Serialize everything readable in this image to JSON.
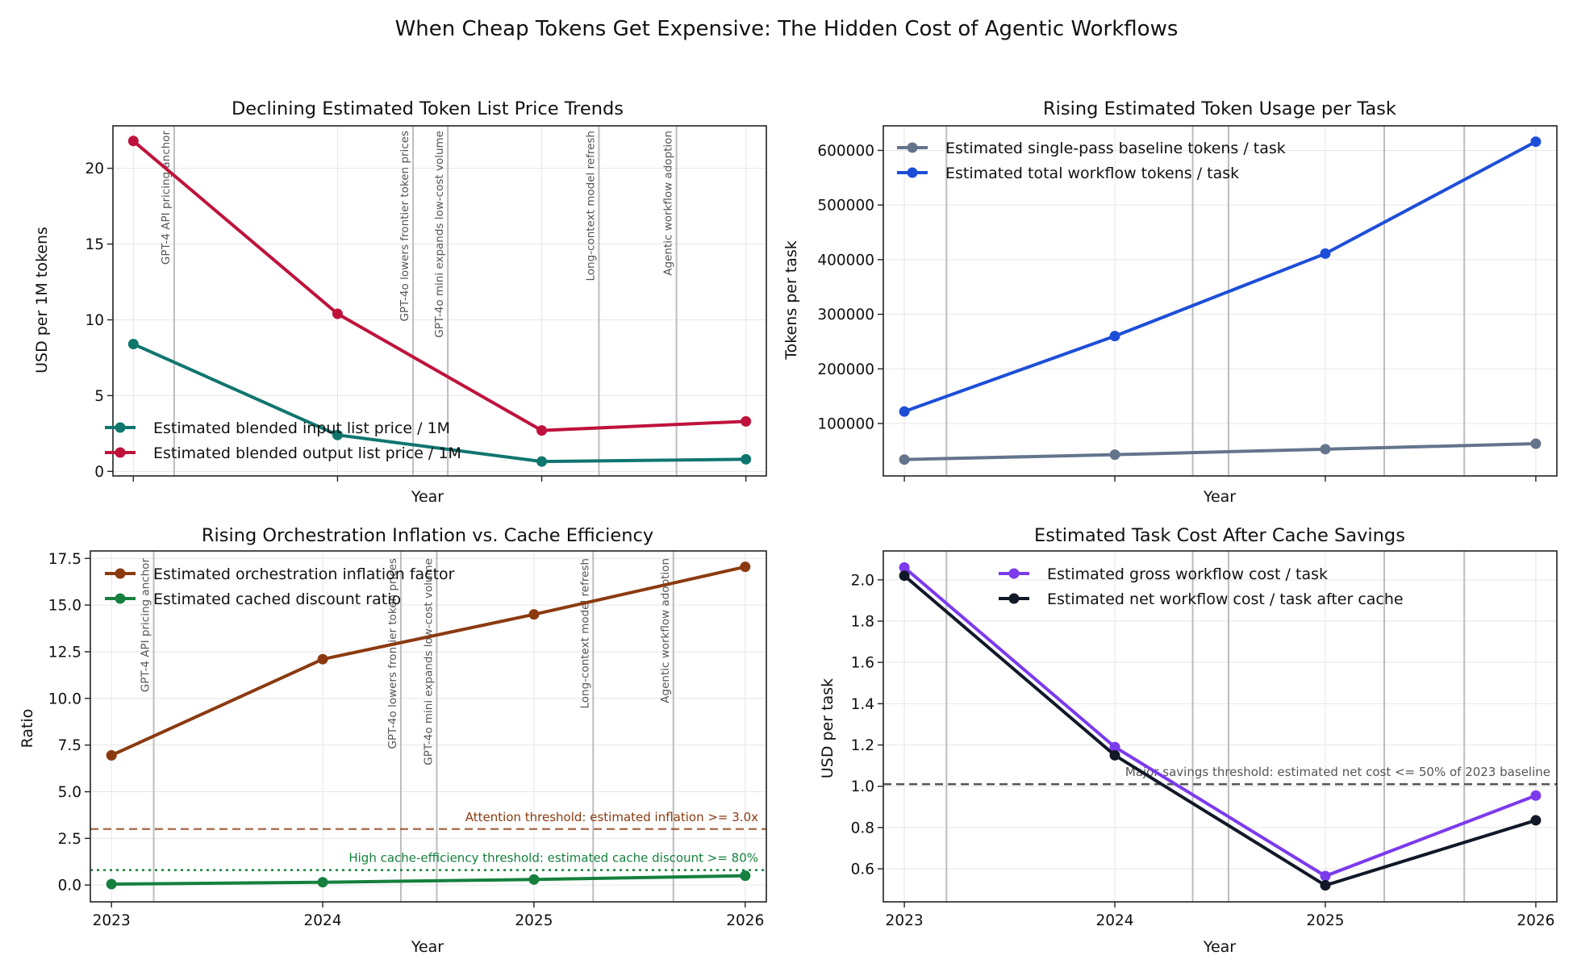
{
  "figure_title": "When Cheap Tokens Get Expensive: The Hidden Cost of Agentic Workflows",
  "colors": {
    "input_price": "#0f766e",
    "output_price": "#be123c",
    "baseline_tokens": "#64748b",
    "workflow_tokens": "#1d4ed8",
    "inflation": "#8b3a0f",
    "cache_discount": "#15803d",
    "gross_cost": "#7c3aed",
    "net_cost": "#111827",
    "event_line": "#bdbdbd",
    "event_text": "#555555",
    "grid": "#e6e6e6"
  },
  "chart_data": [
    {
      "type": "line",
      "title": "Declining Estimated Token List Price Trends",
      "xlabel": "Year",
      "ylabel": "USD per 1M tokens",
      "x": [
        2023,
        2024,
        2025,
        2026
      ],
      "xlim": [
        2022.9,
        2026.1
      ],
      "ylim": [
        -0.3,
        22.8
      ],
      "yticks": [
        0,
        5,
        10,
        15,
        20
      ],
      "ytick_labels": [
        "0",
        "5",
        "10",
        "15",
        "20"
      ],
      "show_xtick_labels": false,
      "grid": true,
      "legend": "lower-left",
      "series": [
        {
          "name": "Estimated blended input list price / 1M",
          "color_key": "input_price",
          "values": [
            8.4,
            2.4,
            0.65,
            0.8
          ]
        },
        {
          "name": "Estimated blended output list price / 1M",
          "color_key": "output_price",
          "values": [
            21.8,
            10.4,
            2.7,
            3.3
          ]
        }
      ],
      "events": [
        {
          "x": 2023.2,
          "label": "GPT-4 API pricing anchor"
        },
        {
          "x": 2024.37,
          "label": "GPT-4o lowers frontier token prices"
        },
        {
          "x": 2024.54,
          "label": "GPT-4o mini expands low-cost volume"
        },
        {
          "x": 2025.28,
          "label": "Long-context model refresh"
        },
        {
          "x": 2025.66,
          "label": "Agentic workflow adoption"
        }
      ]
    },
    {
      "type": "line",
      "title": "Rising Estimated Token Usage per Task",
      "xlabel": "Year",
      "ylabel": "Tokens per task",
      "x": [
        2023,
        2024,
        2025,
        2026
      ],
      "xlim": [
        2022.9,
        2026.1
      ],
      "ylim": [
        4000,
        645000
      ],
      "yticks": [
        100000,
        200000,
        300000,
        400000,
        500000,
        600000
      ],
      "ytick_labels": [
        "100000",
        "200000",
        "300000",
        "400000",
        "500000",
        "600000"
      ],
      "show_xtick_labels": false,
      "grid": true,
      "legend": "top-left",
      "series": [
        {
          "name": "Estimated single-pass baseline tokens / task",
          "color_key": "baseline_tokens",
          "values": [
            34000,
            43000,
            53000,
            63000
          ]
        },
        {
          "name": "Estimated total workflow tokens / task",
          "color_key": "workflow_tokens",
          "values": [
            122000,
            260000,
            411000,
            616000
          ]
        }
      ],
      "events": [
        {
          "x": 2023.2,
          "label": ""
        },
        {
          "x": 2024.37,
          "label": ""
        },
        {
          "x": 2024.54,
          "label": ""
        },
        {
          "x": 2025.28,
          "label": ""
        },
        {
          "x": 2025.66,
          "label": ""
        }
      ]
    },
    {
      "type": "line",
      "title": "Rising Orchestration Inflation vs. Cache Efficiency",
      "xlabel": "Year",
      "ylabel": "Ratio",
      "x": [
        2023,
        2024,
        2025,
        2026
      ],
      "xlim": [
        2022.9,
        2026.1
      ],
      "ylim": [
        -0.9,
        17.9
      ],
      "yticks": [
        0,
        2.5,
        5,
        7.5,
        10,
        12.5,
        15,
        17.5
      ],
      "ytick_labels": [
        "0.0",
        "2.5",
        "5.0",
        "7.5",
        "10.0",
        "12.5",
        "15.0",
        "17.5"
      ],
      "xtick_labels": [
        "2023",
        "2024",
        "2025",
        "2026"
      ],
      "show_xtick_labels": true,
      "grid": true,
      "legend": "top-left",
      "series": [
        {
          "name": "Estimated orchestration inflation factor",
          "color_key": "inflation",
          "values": [
            6.95,
            12.1,
            14.5,
            17.05
          ]
        },
        {
          "name": "Estimated cached discount ratio",
          "color_key": "cache_discount",
          "values": [
            0.05,
            0.15,
            0.3,
            0.5
          ]
        }
      ],
      "thresholds": [
        {
          "y": 3.0,
          "style": "dashed",
          "color_key": "inflation",
          "label": "Attention threshold: estimated inflation >= 3.0x"
        },
        {
          "y": 0.8,
          "style": "dotted",
          "color_key": "cache_discount",
          "label": "High cache-efficiency threshold: estimated cache discount >= 80%"
        }
      ],
      "events": [
        {
          "x": 2023.2,
          "label": "GPT-4 API pricing anchor"
        },
        {
          "x": 2024.37,
          "label": "GPT-4o lowers frontier token prices"
        },
        {
          "x": 2024.54,
          "label": "GPT-4o mini expands low-cost volume"
        },
        {
          "x": 2025.28,
          "label": "Long-context model refresh"
        },
        {
          "x": 2025.66,
          "label": "Agentic workflow adoption"
        }
      ]
    },
    {
      "type": "line",
      "title": "Estimated Task Cost After Cache Savings",
      "xlabel": "Year",
      "ylabel": "USD per task",
      "x": [
        2023,
        2024,
        2025,
        2026
      ],
      "xlim": [
        2022.9,
        2026.1
      ],
      "ylim": [
        0.44,
        2.14
      ],
      "yticks": [
        0.6,
        0.8,
        1.0,
        1.2,
        1.4,
        1.6,
        1.8,
        2.0
      ],
      "ytick_labels": [
        "0.6",
        "0.8",
        "1.0",
        "1.2",
        "1.4",
        "1.6",
        "1.8",
        "2.0"
      ],
      "xtick_labels": [
        "2023",
        "2024",
        "2025",
        "2026"
      ],
      "show_xtick_labels": true,
      "grid": true,
      "legend": "top-center",
      "series": [
        {
          "name": "Estimated gross workflow cost / task",
          "color_key": "gross_cost",
          "values": [
            2.06,
            1.19,
            0.565,
            0.955
          ]
        },
        {
          "name": "Estimated net workflow cost / task after cache",
          "color_key": "net_cost",
          "values": [
            2.02,
            1.15,
            0.52,
            0.835
          ]
        }
      ],
      "thresholds": [
        {
          "y": 1.01,
          "style": "dashed",
          "color_key": "event_text",
          "label": "Major savings threshold: estimated net cost <= 50% of 2023 baseline"
        }
      ],
      "events": [
        {
          "x": 2023.2,
          "label": ""
        },
        {
          "x": 2024.37,
          "label": ""
        },
        {
          "x": 2024.54,
          "label": ""
        },
        {
          "x": 2025.28,
          "label": ""
        },
        {
          "x": 2025.66,
          "label": ""
        }
      ]
    }
  ]
}
